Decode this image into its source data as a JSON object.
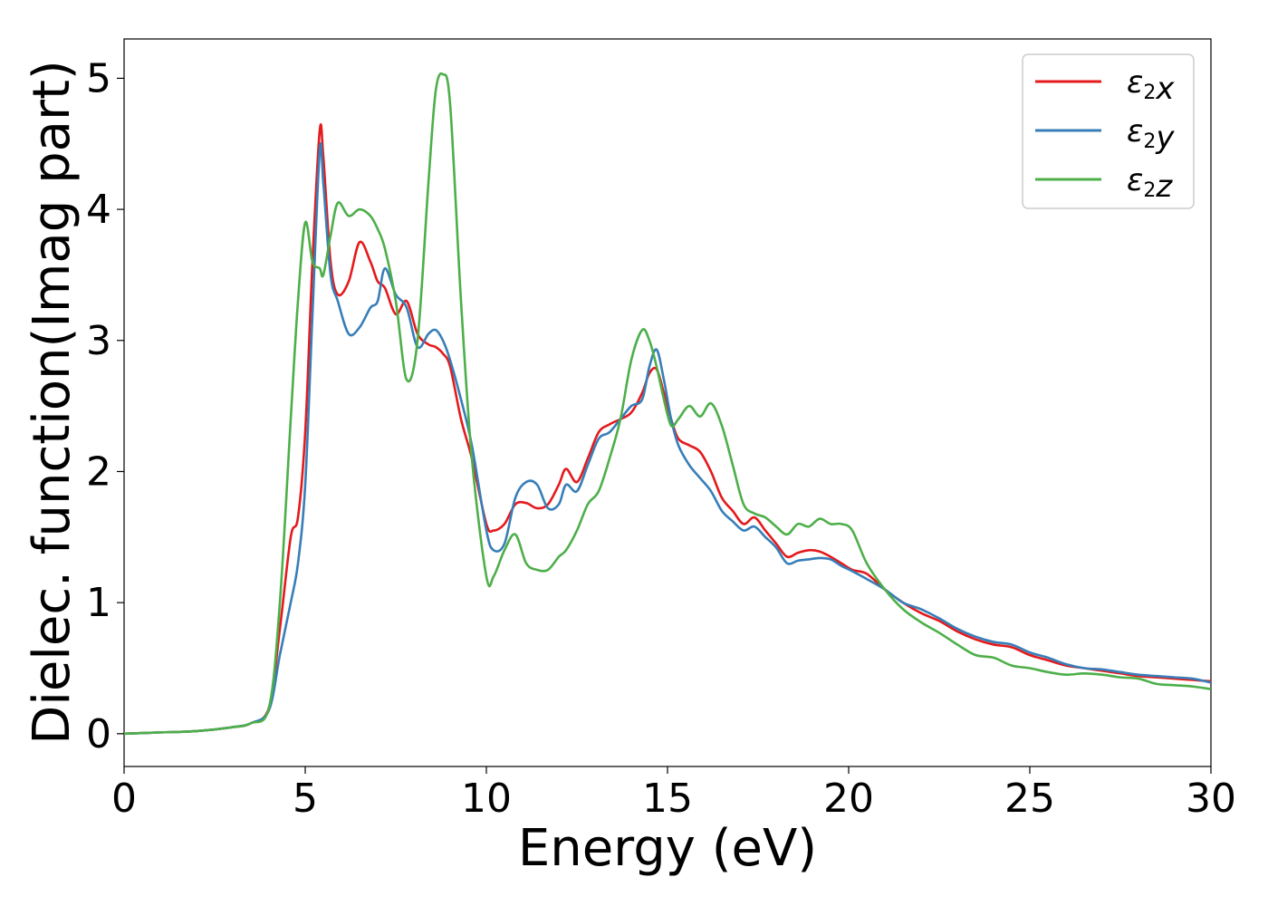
{
  "chart_data": {
    "type": "line",
    "title": "",
    "xlabel": "Energy (eV)",
    "ylabel": "Dielec. function(Imag part)",
    "xlim": [
      0,
      30
    ],
    "ylim": [
      -0.25,
      5.3
    ],
    "xticks": [
      0,
      5,
      10,
      15,
      20,
      25,
      30
    ],
    "yticks": [
      0,
      1,
      2,
      3,
      4,
      5
    ],
    "grid": false,
    "legend_position": "top-right",
    "x": [
      0,
      1,
      2,
      3,
      3.5,
      4,
      4.3,
      4.6,
      4.8,
      5,
      5.2,
      5.4,
      5.5,
      5.7,
      5.9,
      6.2,
      6.5,
      6.8,
      7.0,
      7.2,
      7.5,
      7.8,
      8.1,
      8.4,
      8.6,
      8.8,
      9.0,
      9.3,
      9.6,
      10.0,
      10.2,
      10.5,
      10.8,
      11.1,
      11.4,
      11.7,
      12.0,
      12.2,
      12.5,
      12.8,
      13.1,
      13.4,
      13.7,
      14.0,
      14.3,
      14.5,
      14.7,
      14.9,
      15.1,
      15.3,
      15.6,
      15.9,
      16.2,
      16.5,
      16.8,
      17.1,
      17.4,
      17.7,
      18.0,
      18.3,
      18.6,
      18.9,
      19.2,
      19.5,
      19.8,
      20.1,
      20.5,
      21,
      21.5,
      22,
      22.5,
      23,
      23.5,
      24,
      24.5,
      25,
      25.5,
      26,
      26.5,
      27,
      27.5,
      28,
      28.5,
      29,
      29.5,
      30
    ],
    "series": [
      {
        "name": "ε₂x",
        "color": "#e41a1c",
        "values": [
          0,
          0.01,
          0.02,
          0.05,
          0.08,
          0.2,
          0.8,
          1.5,
          1.65,
          2.3,
          3.6,
          4.6,
          4.4,
          3.6,
          3.35,
          3.45,
          3.75,
          3.6,
          3.45,
          3.4,
          3.2,
          3.3,
          3.05,
          2.97,
          2.95,
          2.9,
          2.8,
          2.4,
          2.1,
          1.6,
          1.55,
          1.6,
          1.75,
          1.76,
          1.72,
          1.75,
          1.9,
          2.02,
          1.92,
          2.1,
          2.3,
          2.36,
          2.4,
          2.45,
          2.6,
          2.75,
          2.78,
          2.6,
          2.4,
          2.25,
          2.2,
          2.15,
          2.0,
          1.8,
          1.7,
          1.6,
          1.65,
          1.55,
          1.45,
          1.35,
          1.38,
          1.4,
          1.39,
          1.35,
          1.3,
          1.25,
          1.22,
          1.1,
          1.0,
          0.92,
          0.86,
          0.78,
          0.72,
          0.68,
          0.66,
          0.6,
          0.56,
          0.52,
          0.5,
          0.48,
          0.46,
          0.44,
          0.43,
          0.42,
          0.41,
          0.4
        ]
      },
      {
        "name": "ε₂y",
        "color": "#377eb8",
        "values": [
          0,
          0.01,
          0.02,
          0.05,
          0.08,
          0.18,
          0.6,
          1.0,
          1.3,
          1.9,
          3.2,
          4.45,
          4.2,
          3.5,
          3.3,
          3.05,
          3.1,
          3.25,
          3.3,
          3.55,
          3.35,
          3.25,
          2.95,
          3.05,
          3.08,
          3.0,
          2.85,
          2.55,
          2.2,
          1.55,
          1.4,
          1.45,
          1.8,
          1.92,
          1.9,
          1.72,
          1.75,
          1.9,
          1.85,
          2.05,
          2.25,
          2.3,
          2.4,
          2.5,
          2.55,
          2.8,
          2.93,
          2.7,
          2.4,
          2.2,
          2.05,
          1.95,
          1.85,
          1.7,
          1.62,
          1.55,
          1.58,
          1.5,
          1.42,
          1.3,
          1.32,
          1.33,
          1.34,
          1.33,
          1.28,
          1.24,
          1.18,
          1.1,
          1.0,
          0.95,
          0.88,
          0.8,
          0.74,
          0.7,
          0.68,
          0.62,
          0.58,
          0.53,
          0.5,
          0.49,
          0.47,
          0.45,
          0.44,
          0.43,
          0.42,
          0.39
        ]
      },
      {
        "name": "ε₂z",
        "color": "#4daf4a",
        "values": [
          0,
          0.01,
          0.02,
          0.05,
          0.08,
          0.2,
          1.0,
          2.4,
          3.3,
          3.9,
          3.6,
          3.55,
          3.5,
          3.8,
          4.05,
          3.95,
          4.0,
          3.95,
          3.85,
          3.7,
          3.3,
          2.7,
          3.0,
          4.2,
          4.9,
          5.03,
          4.8,
          3.3,
          2.1,
          1.2,
          1.2,
          1.4,
          1.52,
          1.3,
          1.25,
          1.25,
          1.35,
          1.4,
          1.55,
          1.75,
          1.85,
          2.1,
          2.4,
          2.85,
          3.08,
          3.0,
          2.8,
          2.55,
          2.35,
          2.4,
          2.5,
          2.42,
          2.52,
          2.35,
          2.05,
          1.75,
          1.68,
          1.65,
          1.58,
          1.52,
          1.6,
          1.58,
          1.64,
          1.6,
          1.6,
          1.55,
          1.3,
          1.1,
          0.95,
          0.85,
          0.77,
          0.68,
          0.6,
          0.58,
          0.52,
          0.5,
          0.47,
          0.45,
          0.46,
          0.45,
          0.43,
          0.42,
          0.38,
          0.37,
          0.36,
          0.34
        ]
      }
    ]
  }
}
